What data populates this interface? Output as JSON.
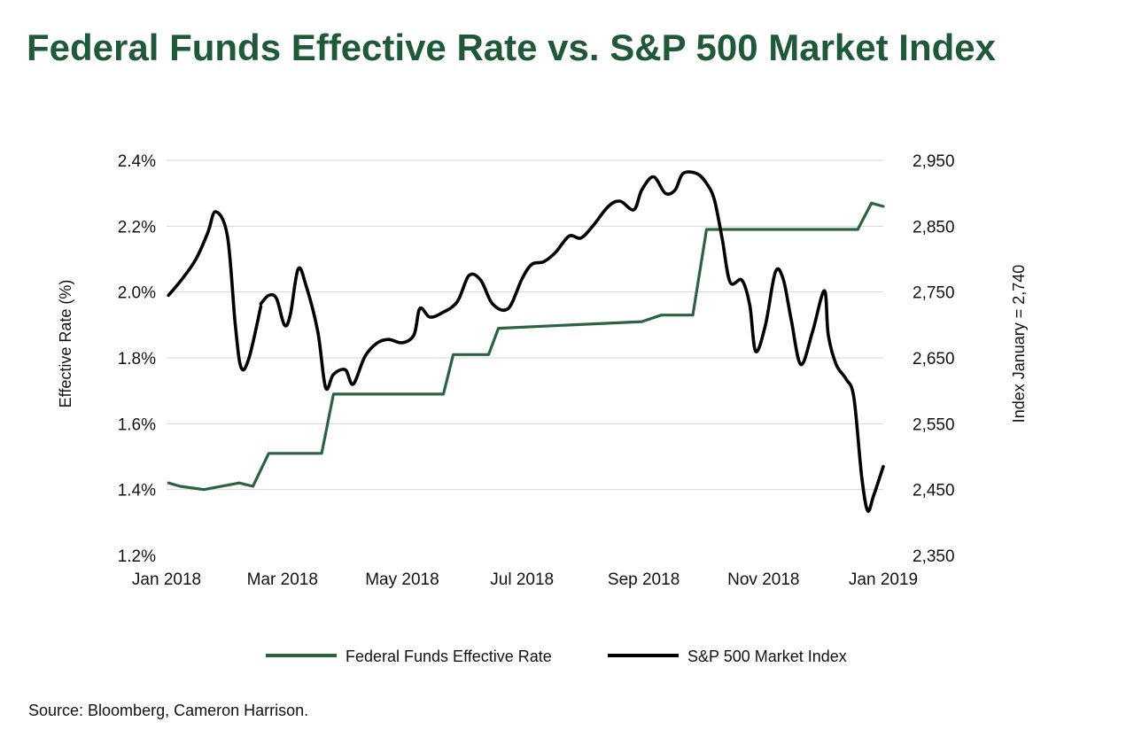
{
  "title": "Federal Funds Effective Rate vs. S&P 500 Market Index",
  "source": "Source: Bloomberg, Cameron Harrison.",
  "colors": {
    "rate": "#2a6340",
    "index": "#000000",
    "title": "#1f5a38",
    "grid": "#d6d6d6"
  },
  "chart_data": {
    "type": "line",
    "title": "Federal Funds Effective Rate vs. S&P 500 Market Index",
    "x_type": "date",
    "xlim": [
      "2018-01-01",
      "2019-01-01"
    ],
    "x_ticks": [
      {
        "date": "2018-01-01",
        "label": "Jan 2018"
      },
      {
        "date": "2018-03-01",
        "label": "Mar 2018"
      },
      {
        "date": "2018-05-01",
        "label": "May 2018"
      },
      {
        "date": "2018-07-01",
        "label": "Jul 2018"
      },
      {
        "date": "2018-09-01",
        "label": "Sep 2018"
      },
      {
        "date": "2018-11-01",
        "label": "Nov 2018"
      },
      {
        "date": "2019-01-01",
        "label": "Jan 2019"
      }
    ],
    "y_left": {
      "label": "Effective Rate (%)",
      "ylim": [
        1.2,
        2.4
      ],
      "ticks": [
        1.2,
        1.4,
        1.6,
        1.8,
        2.0,
        2.2,
        2.4
      ],
      "tick_labels": [
        "1.2%",
        "1.4%",
        "1.6%",
        "1.8%",
        "2.0%",
        "2.2%",
        "2.4%"
      ]
    },
    "y_right": {
      "label": "Index January = 2,740",
      "ylim": [
        2350,
        2950
      ],
      "ticks": [
        2350,
        2450,
        2550,
        2650,
        2750,
        2850,
        2950
      ],
      "tick_labels": [
        "2,350",
        "2,450",
        "2,550",
        "2,650",
        "2,750",
        "2,850",
        "2,950"
      ]
    },
    "grid": true,
    "legend_position": "bottom",
    "series": [
      {
        "name": "Federal Funds Effective Rate",
        "axis": "left",
        "color": "#2a6340",
        "points": [
          [
            "2018-01-02",
            1.42
          ],
          [
            "2018-01-08",
            1.41
          ],
          [
            "2018-01-20",
            1.4
          ],
          [
            "2018-02-07",
            1.42
          ],
          [
            "2018-02-14",
            1.41
          ],
          [
            "2018-02-22",
            1.51
          ],
          [
            "2018-03-21",
            1.51
          ],
          [
            "2018-03-27",
            1.69
          ],
          [
            "2018-05-22",
            1.69
          ],
          [
            "2018-05-27",
            1.81
          ],
          [
            "2018-06-14",
            1.81
          ],
          [
            "2018-06-19",
            1.89
          ],
          [
            "2018-08-31",
            1.91
          ],
          [
            "2018-09-10",
            1.93
          ],
          [
            "2018-09-26",
            1.93
          ],
          [
            "2018-10-03",
            2.19
          ],
          [
            "2018-12-19",
            2.19
          ],
          [
            "2018-12-26",
            2.27
          ],
          [
            "2019-01-01",
            2.26
          ]
        ]
      },
      {
        "name": "S&P 500 Market Index",
        "axis": "right",
        "color": "#000000",
        "segments": [
          [
            [
              "2018-01-02",
              2745
            ],
            [
              "2018-01-09",
              2770
            ],
            [
              "2018-01-16",
              2800
            ],
            [
              "2018-01-22",
              2840
            ],
            [
              "2018-01-26",
              2872
            ],
            [
              "2018-02-01",
              2835
            ],
            [
              "2018-02-05",
              2700
            ],
            [
              "2018-02-08",
              2635
            ],
            [
              "2018-02-12",
              2650
            ],
            [
              "2018-02-18",
              2728
            ]
          ],
          [
            [
              "2018-02-18",
              2732
            ],
            [
              "2018-02-22",
              2745
            ],
            [
              "2018-02-26",
              2740
            ],
            [
              "2018-03-02",
              2700
            ],
            [
              "2018-03-05",
              2715
            ],
            [
              "2018-03-09",
              2785
            ],
            [
              "2018-03-13",
              2760
            ],
            [
              "2018-03-19",
              2690
            ],
            [
              "2018-03-23",
              2605
            ],
            [
              "2018-03-27",
              2625
            ],
            [
              "2018-04-02",
              2632
            ],
            [
              "2018-04-06",
              2610
            ],
            [
              "2018-04-12",
              2652
            ],
            [
              "2018-04-18",
              2672
            ],
            [
              "2018-04-24",
              2678
            ],
            [
              "2018-05-01",
              2673
            ],
            [
              "2018-05-07",
              2685
            ],
            [
              "2018-05-10",
              2725
            ],
            [
              "2018-05-15",
              2712
            ],
            [
              "2018-05-21",
              2718
            ],
            [
              "2018-05-29",
              2735
            ],
            [
              "2018-06-04",
              2775
            ],
            [
              "2018-06-10",
              2768
            ],
            [
              "2018-06-16",
              2732
            ],
            [
              "2018-06-24",
              2725
            ],
            [
              "2018-07-01",
              2770
            ],
            [
              "2018-07-06",
              2792
            ],
            [
              "2018-07-12",
              2796
            ],
            [
              "2018-07-18",
              2810
            ],
            [
              "2018-07-25",
              2835
            ],
            [
              "2018-07-31",
              2832
            ],
            [
              "2018-08-06",
              2850
            ],
            [
              "2018-08-14",
              2880
            ],
            [
              "2018-08-20",
              2888
            ],
            [
              "2018-08-27",
              2875
            ],
            [
              "2018-08-31",
              2905
            ],
            [
              "2018-09-06",
              2925
            ],
            [
              "2018-09-12",
              2900
            ],
            [
              "2018-09-17",
              2905
            ],
            [
              "2018-09-21",
              2930
            ],
            [
              "2018-09-28",
              2930
            ],
            [
              "2018-10-03",
              2915
            ],
            [
              "2018-10-07",
              2890
            ],
            [
              "2018-10-11",
              2830
            ],
            [
              "2018-10-15",
              2765
            ],
            [
              "2018-10-21",
              2768
            ],
            [
              "2018-10-25",
              2730
            ],
            [
              "2018-10-28",
              2660
            ],
            [
              "2018-11-02",
              2700
            ],
            [
              "2018-11-07",
              2780
            ],
            [
              "2018-11-11",
              2770
            ],
            [
              "2018-11-15",
              2710
            ],
            [
              "2018-11-20",
              2640
            ],
            [
              "2018-11-26",
              2690
            ],
            [
              "2018-12-02",
              2752
            ],
            [
              "2018-12-04",
              2685
            ],
            [
              "2018-12-08",
              2640
            ],
            [
              "2018-12-13",
              2618
            ],
            [
              "2018-12-17",
              2590
            ],
            [
              "2018-12-21",
              2470
            ],
            [
              "2018-12-24",
              2418
            ],
            [
              "2018-12-27",
              2440
            ],
            [
              "2019-01-01",
              2485
            ]
          ]
        ]
      }
    ]
  }
}
